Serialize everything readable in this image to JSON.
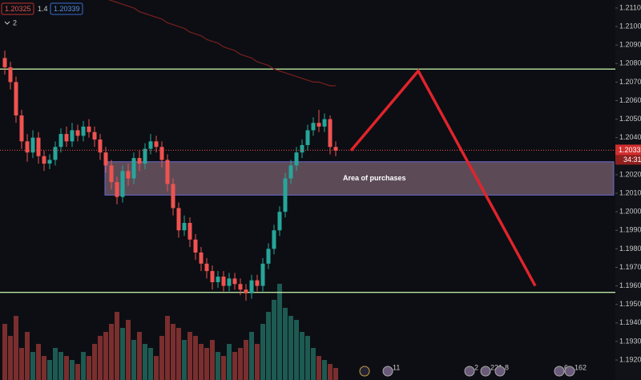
{
  "chart_data": {
    "type": "candlestick",
    "toolbar": {
      "bid": "1.20325",
      "spread": "1.4",
      "ask": "1.20339",
      "layers": "2"
    },
    "open": [
      1.2083,
      1.2078,
      1.207,
      1.2052,
      1.2038,
      1.2032,
      1.204,
      1.203,
      1.2026,
      1.2028,
      1.2035,
      1.2042,
      1.2038,
      1.2044,
      1.2041,
      1.2046,
      1.2043,
      1.2039,
      1.2032,
      1.2025,
      1.2016,
      1.2008,
      1.2022,
      1.2018,
      1.2029,
      1.2026,
      1.2034,
      1.2038,
      1.2035,
      1.2028,
      1.2015,
      1.2002,
      1.199,
      1.1994,
      1.1985,
      1.1978,
      1.1972,
      1.1968,
      1.1962,
      1.1965,
      1.196,
      1.1964,
      1.1961,
      1.1958,
      1.1956,
      1.1963,
      1.196,
      1.1972,
      1.198,
      1.199,
      1.2,
      1.2018,
      1.2025,
      1.2032,
      1.2036,
      1.2044,
      1.2048,
      1.2046,
      1.205,
      1.2035
    ],
    "high": [
      1.2087,
      1.2081,
      1.2073,
      1.2055,
      1.2042,
      1.2044,
      1.2043,
      1.2033,
      1.2031,
      1.2038,
      1.2045,
      1.2046,
      1.2048,
      1.2047,
      1.2049,
      1.205,
      1.2046,
      1.2042,
      1.2035,
      1.2028,
      1.2019,
      1.2025,
      1.2026,
      1.2032,
      1.2033,
      1.2037,
      1.2042,
      1.2041,
      1.2038,
      1.2031,
      1.2018,
      1.2005,
      1.1998,
      1.1997,
      1.1988,
      1.1981,
      1.1975,
      1.1971,
      1.1968,
      1.1968,
      1.1967,
      1.1967,
      1.1964,
      1.1961,
      1.1966,
      1.1966,
      1.1975,
      1.1983,
      1.1993,
      1.2003,
      1.2021,
      1.2028,
      1.2035,
      1.2039,
      1.2047,
      1.2051,
      1.2055,
      1.2053,
      1.2052,
      1.2038
    ],
    "low": [
      1.2074,
      1.2066,
      1.2048,
      1.2034,
      1.2027,
      1.2029,
      1.2026,
      1.2022,
      1.2023,
      1.2025,
      1.2032,
      1.2035,
      1.2035,
      1.2038,
      1.2038,
      1.204,
      1.2035,
      1.2028,
      1.2021,
      1.2012,
      1.2004,
      1.2005,
      1.2014,
      1.2015,
      1.2022,
      1.2023,
      1.2031,
      1.2032,
      1.2024,
      1.2011,
      1.1998,
      1.1986,
      1.1987,
      1.1981,
      1.1974,
      1.1968,
      1.1964,
      1.1958,
      1.1959,
      1.1957,
      1.1957,
      1.1958,
      1.1955,
      1.1952,
      1.1953,
      1.1957,
      1.1957,
      1.1969,
      1.1977,
      1.1987,
      1.1997,
      1.2015,
      1.2022,
      1.2029,
      1.2033,
      1.2041,
      1.2043,
      1.2043,
      1.2031,
      1.203
    ],
    "close": [
      1.2078,
      1.207,
      1.2052,
      1.2038,
      1.2032,
      1.204,
      1.203,
      1.2026,
      1.2028,
      1.2035,
      1.2042,
      1.2038,
      1.2044,
      1.2041,
      1.2046,
      1.2043,
      1.2039,
      1.2032,
      1.2025,
      1.2016,
      1.2008,
      1.2022,
      1.2018,
      1.2029,
      1.2026,
      1.2034,
      1.2038,
      1.2035,
      1.2028,
      1.2015,
      1.2002,
      1.199,
      1.1994,
      1.1985,
      1.1978,
      1.1972,
      1.1968,
      1.1962,
      1.1965,
      1.196,
      1.1964,
      1.1961,
      1.1958,
      1.1956,
      1.1963,
      1.196,
      1.1972,
      1.198,
      1.199,
      1.2,
      1.2018,
      1.2025,
      1.2032,
      1.2036,
      1.2044,
      1.2048,
      1.2046,
      1.205,
      1.2035,
      1.2033
    ],
    "volume": [
      70,
      55,
      80,
      40,
      60,
      35,
      45,
      30,
      25,
      40,
      35,
      30,
      25,
      20,
      35,
      30,
      45,
      55,
      60,
      70,
      85,
      65,
      75,
      50,
      60,
      45,
      40,
      30,
      55,
      80,
      70,
      65,
      50,
      60,
      55,
      45,
      40,
      50,
      35,
      30,
      45,
      35,
      40,
      50,
      60,
      45,
      70,
      85,
      100,
      120,
      90,
      80,
      75,
      60,
      55,
      40,
      30,
      25,
      20,
      15
    ],
    "moving_average": {
      "color": "#7a1f1f",
      "values": [
        null,
        null,
        null,
        null,
        null,
        null,
        null,
        null,
        null,
        null,
        null,
        null,
        null,
        null,
        null,
        null,
        null,
        null,
        1.2115,
        1.2114,
        1.2113,
        1.2112,
        1.2111,
        1.211,
        1.2108,
        1.2107,
        1.2106,
        1.2105,
        1.2104,
        1.2102,
        1.2101,
        1.21,
        1.2099,
        1.2097,
        1.2096,
        1.2095,
        1.2093,
        1.2092,
        1.2091,
        1.2089,
        1.2088,
        1.2087,
        1.2085,
        1.2084,
        1.2083,
        1.2081,
        1.208,
        1.2079,
        1.2077,
        1.2076,
        1.2075,
        1.2074,
        1.2073,
        1.2072,
        1.2071,
        1.207,
        1.207,
        1.2069,
        1.2068,
        1.2068
      ]
    },
    "up_color": "#26a69a",
    "down_color": "#ef5350",
    "levels": [
      1.2077,
      1.19565
    ],
    "zone": {
      "label": "Area of purchases",
      "low": 1.2009,
      "high": 1.2027
    },
    "projection": [
      1.2033,
      1.2076,
      1.196
    ],
    "last_price": {
      "value": 1.20332,
      "label": "1.20332"
    },
    "countdown": "34:31",
    "events": [
      "11",
      "2",
      "221",
      "8",
      "6",
      "162"
    ],
    "ylim": [
      1.19092,
      1.21143
    ],
    "yticks": [
      {
        "value": 1.211,
        "label": "1.21100"
      },
      {
        "value": 1.21,
        "label": "1.21000"
      },
      {
        "value": 1.209,
        "label": "1.20900"
      },
      {
        "value": 1.208,
        "label": "1.20800"
      },
      {
        "value": 1.207,
        "label": "1.20700"
      },
      {
        "value": 1.206,
        "label": "1.20600"
      },
      {
        "value": 1.205,
        "label": "1.20500"
      },
      {
        "value": 1.204,
        "label": "1.20400"
      },
      {
        "value": 1.202,
        "label": "1.20200"
      },
      {
        "value": 1.201,
        "label": "1.20100"
      },
      {
        "value": 1.2,
        "label": "1.20000"
      },
      {
        "value": 1.199,
        "label": "1.19900"
      },
      {
        "value": 1.198,
        "label": "1.19800"
      },
      {
        "value": 1.197,
        "label": "1.19700"
      },
      {
        "value": 1.196,
        "label": "1.19600"
      },
      {
        "value": 1.195,
        "label": "1.19500"
      },
      {
        "value": 1.194,
        "label": "1.19400"
      },
      {
        "value": 1.193,
        "label": "1.19300"
      },
      {
        "value": 1.192,
        "label": "1.19200"
      }
    ]
  }
}
